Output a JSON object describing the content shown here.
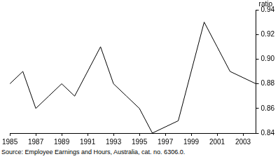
{
  "chart_data": {
    "type": "line",
    "y_label": "ratio",
    "source": "Source: Employee Earnings and Hours, Australia, cat. no. 6306.0.",
    "x": [
      1985,
      1986,
      1987,
      1988,
      1989,
      1990,
      1991,
      1992,
      1993,
      1994,
      1995,
      1996,
      1997,
      1998,
      1999,
      2000,
      2001,
      2002,
      2003,
      2004
    ],
    "values": [
      0.88,
      0.89,
      0.86,
      0.87,
      0.88,
      0.87,
      0.89,
      0.91,
      0.88,
      0.87,
      0.86,
      0.84,
      0.845,
      0.85,
      0.89,
      0.93,
      0.91,
      0.89,
      0.885,
      0.88
    ],
    "color": "#000000",
    "xlim": [
      1985,
      2004
    ],
    "xticks": [
      1985,
      1987,
      1989,
      1991,
      1993,
      1995,
      1997,
      1999,
      2001,
      2003
    ],
    "ylim": [
      0.84,
      0.94
    ],
    "yticks": [
      0.84,
      0.86,
      0.88,
      {
        "value": 0.9,
        "label": "0.90"
      },
      0.92,
      0.94
    ],
    "grid": false
  }
}
